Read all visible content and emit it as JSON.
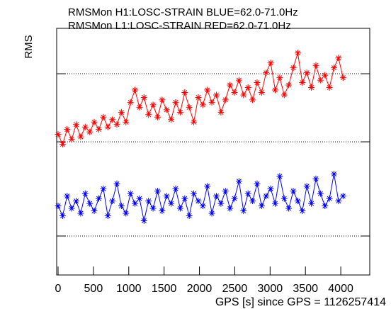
{
  "chart_data": {
    "type": "line",
    "title": "RMSMon H1:LOSC-STRAIN BLUE=62.0-71.0Hz",
    "subtitle": "RMSMon L1:LOSC-STRAIN RED=62.0-71.0Hz",
    "y_label": "RMS",
    "x_label": "GPS [s] since GPS =  1126257414",
    "xlim": [
      -20,
      4410
    ],
    "xticks": [
      0,
      500,
      1000,
      1500,
      2000,
      2500,
      3000,
      3500,
      4000
    ],
    "ylim": [
      0,
      100
    ],
    "yticks": [
      15.8,
      54,
      81.6
    ],
    "grid": true,
    "x": [
      0,
      64,
      128,
      192,
      256,
      320,
      384,
      448,
      512,
      576,
      640,
      704,
      768,
      832,
      896,
      960,
      1024,
      1088,
      1152,
      1216,
      1280,
      1344,
      1408,
      1472,
      1536,
      1600,
      1664,
      1728,
      1792,
      1856,
      1920,
      1984,
      2048,
      2112,
      2176,
      2240,
      2304,
      2368,
      2432,
      2496,
      2560,
      2624,
      2688,
      2752,
      2816,
      2880,
      2944,
      3008,
      3072,
      3136,
      3200,
      3264,
      3328,
      3392,
      3456,
      3520,
      3584,
      3648,
      3712,
      3776,
      3840,
      3904,
      3968,
      4032
    ],
    "series": [
      {
        "color": "#ff0000",
        "values": [
          57,
          53,
          59,
          55,
          61,
          56,
          60,
          58,
          62,
          59,
          64,
          60,
          63,
          61,
          66,
          62,
          70,
          75,
          68,
          72,
          65,
          69,
          64,
          71,
          67,
          63,
          70,
          66,
          74,
          68,
          62,
          72,
          69,
          75,
          70,
          73,
          66,
          71,
          77,
          74,
          79,
          73,
          76,
          71,
          78,
          74,
          82,
          86,
          75,
          80,
          73,
          77,
          84,
          90,
          78,
          82,
          76,
          85,
          79,
          81,
          76,
          84,
          88,
          80
        ]
      },
      {
        "color": "#0000ff",
        "values": [
          28,
          24,
          32,
          27,
          30,
          25,
          33,
          29,
          26,
          31,
          35,
          24,
          30,
          37,
          28,
          25,
          33,
          29,
          31,
          22,
          30,
          27,
          34,
          26,
          32,
          29,
          35,
          27,
          31,
          24,
          33,
          30,
          28,
          36,
          25,
          32,
          29,
          34,
          27,
          31,
          38,
          26,
          33,
          30,
          37,
          28,
          32,
          35,
          29,
          40,
          31,
          27,
          34,
          30,
          26,
          36,
          29,
          39,
          33,
          28,
          31,
          41,
          30,
          32
        ]
      }
    ]
  }
}
